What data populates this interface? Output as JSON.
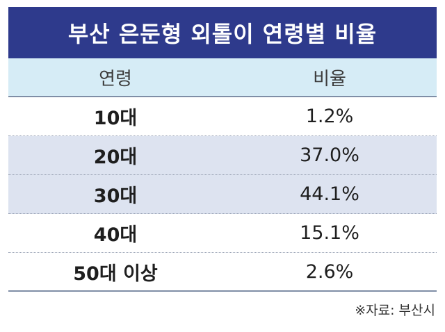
{
  "title": "부산 은둔형 외톨이 연령별 비율",
  "table": {
    "headers": [
      "연령",
      "비율"
    ],
    "rows": [
      {
        "age": "10대",
        "ratio": "1.2%"
      },
      {
        "age": "20대",
        "ratio": "37.0%"
      },
      {
        "age": "30대",
        "ratio": "44.1%"
      },
      {
        "age": "40대",
        "ratio": "15.1%"
      },
      {
        "age": "50대 이상",
        "ratio": "2.6%"
      }
    ]
  },
  "source": "※자료: 부산시",
  "colors": {
    "title_bg": "#2e3a8c",
    "header_bg": "#d6ecf6",
    "shaded_row_bg": "#dde3f0"
  },
  "chart_data": {
    "type": "table",
    "title": "부산 은둔형 외톨이 연령별 비율",
    "columns": [
      "연령",
      "비율"
    ],
    "categories": [
      "10대",
      "20대",
      "30대",
      "40대",
      "50대 이상"
    ],
    "values": [
      1.2,
      37.0,
      44.1,
      15.1,
      2.6
    ],
    "unit": "%"
  }
}
